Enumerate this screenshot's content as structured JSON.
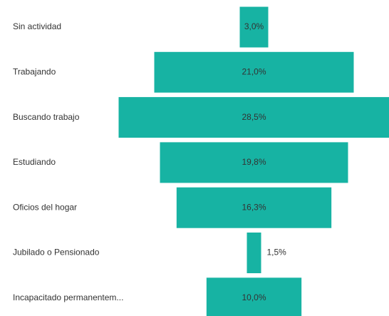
{
  "chart_data": {
    "type": "funnel",
    "categories": [
      "Sin actividad",
      "Trabajando",
      "Buscando trabajo",
      "Estudiando",
      "Oficios del hogar",
      "Jubilado o Pensionado",
      "Incapacitado permanentem..."
    ],
    "values": [
      3.0,
      21.0,
      28.5,
      19.8,
      16.3,
      1.5,
      10.0
    ],
    "value_labels": [
      "3,0%",
      "21,0%",
      "28,5%",
      "19,8%",
      "16,3%",
      "1,5%",
      "10,0%"
    ],
    "color": "#17b3a3"
  }
}
